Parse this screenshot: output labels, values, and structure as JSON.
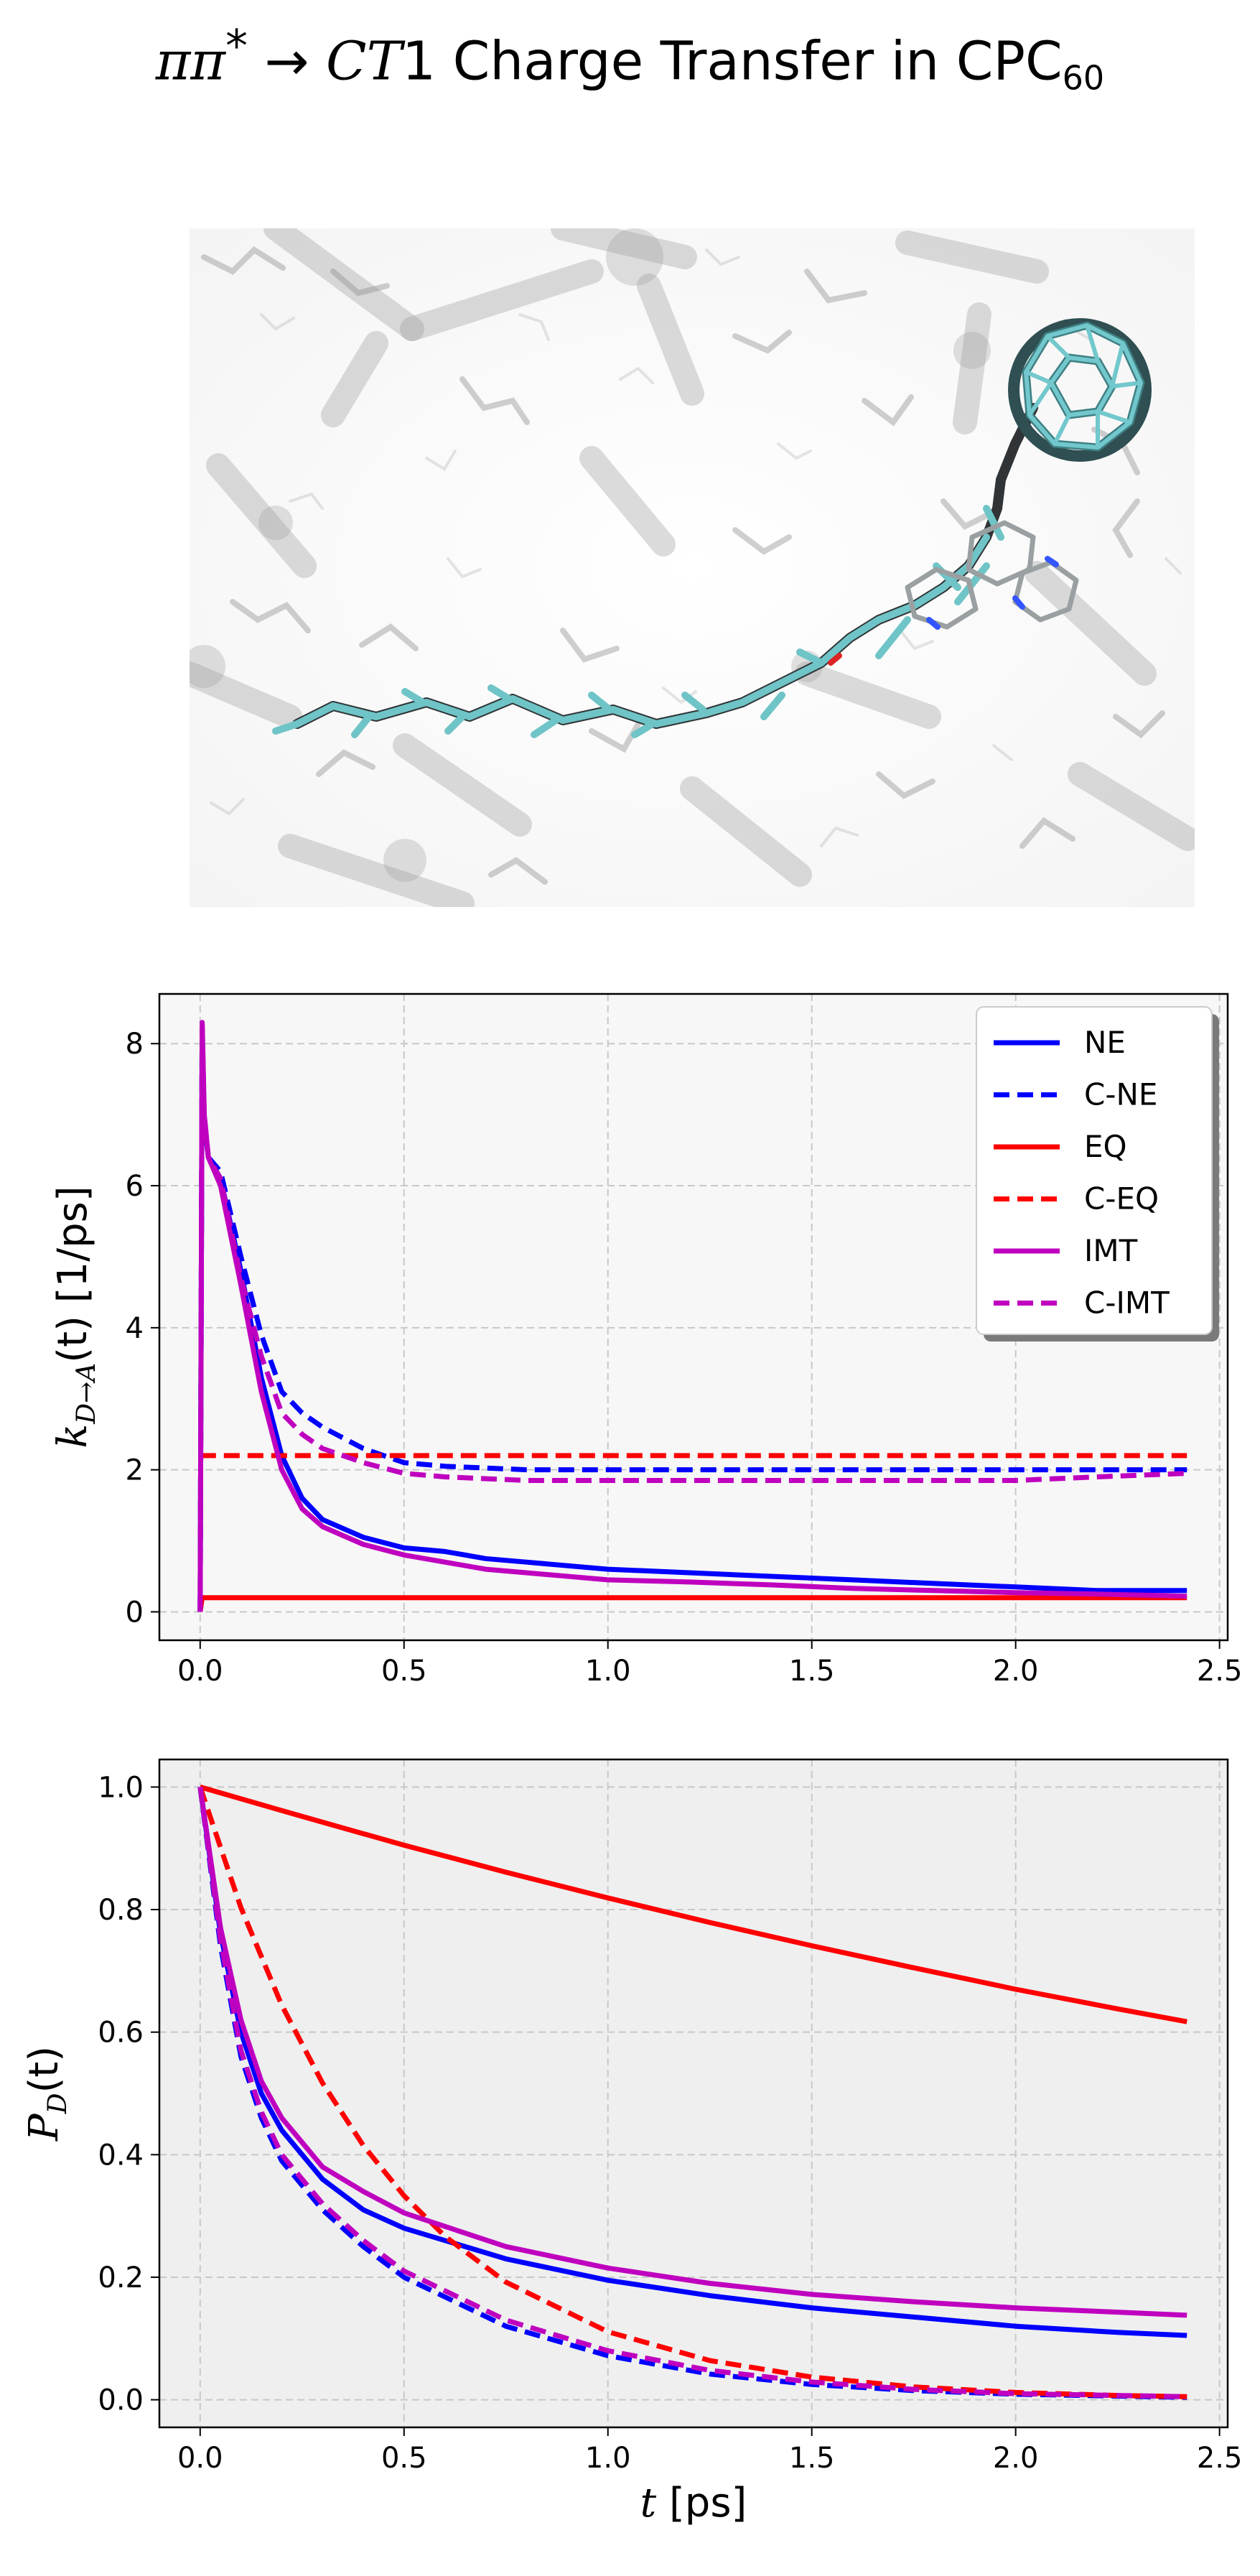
{
  "figure": {
    "title_pre": "ππ",
    "title_star": "*",
    "title_arrow": " → ",
    "title_ct": "CT",
    "title_one": "1",
    "title_rest": " Charge Transfer in CPC",
    "title_sub": "60"
  },
  "colors": {
    "blue": "#0000ff",
    "red": "#ff0000",
    "magenta": "#bf00bf",
    "panel1_bg": "#f7f7f7",
    "panel2_bg": "#efefef",
    "grid": "#c8c8c8"
  },
  "chart_data": [
    {
      "type": "line",
      "panel": "rate",
      "ylabel_prefix": "k",
      "ylabel_sub": "D→A",
      "ylabel_suffix": "(t) [1/ps]",
      "xlim": [
        -0.1,
        2.52
      ],
      "ylim": [
        -0.4,
        8.7
      ],
      "xticks": [
        0.0,
        0.5,
        1.0,
        1.5,
        2.0,
        2.5
      ],
      "xtick_labels": [
        "0.0",
        "0.5",
        "1.0",
        "1.5",
        "2.0",
        "2.5"
      ],
      "yticks": [
        0,
        2,
        4,
        6,
        8
      ],
      "ytick_labels": [
        "0",
        "2",
        "4",
        "6",
        "8"
      ],
      "grid": true,
      "legend_position": "top-right",
      "series": [
        {
          "name": "NE",
          "color": "blue",
          "dash": "solid",
          "x": [
            0,
            0.005,
            0.01,
            0.02,
            0.05,
            0.1,
            0.15,
            0.2,
            0.25,
            0.3,
            0.4,
            0.5,
            0.6,
            0.7,
            0.8,
            1.0,
            1.2,
            1.4,
            1.6,
            1.8,
            2.0,
            2.2,
            2.42
          ],
          "y": [
            0,
            8.2,
            6.9,
            6.4,
            6.1,
            4.8,
            3.3,
            2.2,
            1.6,
            1.3,
            1.05,
            0.9,
            0.85,
            0.75,
            0.7,
            0.6,
            0.55,
            0.5,
            0.45,
            0.4,
            0.35,
            0.3,
            0.3
          ]
        },
        {
          "name": "C-NE",
          "color": "blue",
          "dash": "dashed",
          "x": [
            0,
            0.005,
            0.01,
            0.02,
            0.05,
            0.1,
            0.15,
            0.2,
            0.25,
            0.3,
            0.4,
            0.5,
            0.6,
            0.8,
            1.0,
            1.2,
            1.4,
            1.6,
            1.8,
            2.0,
            2.2,
            2.42
          ],
          "y": [
            0,
            8.2,
            6.9,
            6.4,
            6.2,
            5.0,
            3.9,
            3.1,
            2.8,
            2.6,
            2.3,
            2.1,
            2.05,
            2.0,
            2.0,
            2.0,
            2.0,
            2.0,
            2.0,
            2.0,
            2.0,
            2.0
          ]
        },
        {
          "name": "EQ",
          "color": "red",
          "dash": "solid",
          "x": [
            0,
            0.005,
            2.42
          ],
          "y": [
            0,
            0.2,
            0.2
          ]
        },
        {
          "name": "C-EQ",
          "color": "red",
          "dash": "dashed",
          "x": [
            0,
            2.42
          ],
          "y": [
            2.2,
            2.2
          ]
        },
        {
          "name": "IMT",
          "color": "magenta",
          "dash": "solid",
          "x": [
            0,
            0.005,
            0.01,
            0.02,
            0.05,
            0.1,
            0.15,
            0.2,
            0.25,
            0.3,
            0.4,
            0.5,
            0.6,
            0.7,
            0.8,
            1.0,
            1.2,
            1.4,
            1.6,
            1.8,
            2.0,
            2.2,
            2.42
          ],
          "y": [
            0,
            8.3,
            7.0,
            6.4,
            6.0,
            4.6,
            3.1,
            2.0,
            1.45,
            1.2,
            0.95,
            0.8,
            0.7,
            0.6,
            0.55,
            0.45,
            0.42,
            0.38,
            0.33,
            0.3,
            0.27,
            0.25,
            0.22
          ]
        },
        {
          "name": "C-IMT",
          "color": "magenta",
          "dash": "dashed",
          "x": [
            0,
            0.005,
            0.01,
            0.02,
            0.05,
            0.1,
            0.15,
            0.2,
            0.25,
            0.3,
            0.4,
            0.5,
            0.6,
            0.8,
            1.0,
            1.2,
            1.4,
            1.6,
            1.8,
            2.0,
            2.2,
            2.42
          ],
          "y": [
            0,
            8.3,
            7.0,
            6.4,
            6.1,
            4.7,
            3.6,
            2.8,
            2.5,
            2.3,
            2.1,
            1.95,
            1.9,
            1.85,
            1.85,
            1.85,
            1.85,
            1.85,
            1.85,
            1.85,
            1.9,
            1.95
          ]
        }
      ]
    },
    {
      "type": "line",
      "panel": "population",
      "xlabel_var": "t",
      "xlabel_unit": " [ps]",
      "ylabel_prefix": "P",
      "ylabel_sub": "D",
      "ylabel_suffix": "(t)",
      "xlim": [
        -0.1,
        2.52
      ],
      "ylim": [
        -0.045,
        1.045
      ],
      "xticks": [
        0.0,
        0.5,
        1.0,
        1.5,
        2.0,
        2.5
      ],
      "xtick_labels": [
        "0.0",
        "0.5",
        "1.0",
        "1.5",
        "2.0",
        "2.5"
      ],
      "yticks": [
        0.0,
        0.2,
        0.4,
        0.6,
        0.8,
        1.0
      ],
      "ytick_labels": [
        "0.0",
        "0.2",
        "0.4",
        "0.6",
        "0.8",
        "1.0"
      ],
      "grid": true,
      "series": [
        {
          "name": "NE",
          "color": "blue",
          "dash": "solid",
          "x": [
            0,
            0.05,
            0.1,
            0.15,
            0.2,
            0.3,
            0.4,
            0.5,
            0.75,
            1.0,
            1.25,
            1.5,
            1.75,
            2.0,
            2.25,
            2.42
          ],
          "y": [
            1.0,
            0.76,
            0.6,
            0.5,
            0.44,
            0.36,
            0.31,
            0.28,
            0.23,
            0.195,
            0.17,
            0.15,
            0.135,
            0.12,
            0.11,
            0.105
          ]
        },
        {
          "name": "C-NE",
          "color": "blue",
          "dash": "dashed",
          "x": [
            0,
            0.05,
            0.1,
            0.15,
            0.2,
            0.3,
            0.4,
            0.5,
            0.75,
            1.0,
            1.25,
            1.5,
            1.75,
            2.0,
            2.25,
            2.42
          ],
          "y": [
            1.0,
            0.74,
            0.56,
            0.46,
            0.39,
            0.31,
            0.25,
            0.2,
            0.12,
            0.072,
            0.042,
            0.025,
            0.015,
            0.009,
            0.006,
            0.004
          ]
        },
        {
          "name": "EQ",
          "color": "red",
          "dash": "solid",
          "x": [
            0,
            0.25,
            0.5,
            0.75,
            1.0,
            1.25,
            1.5,
            1.75,
            2.0,
            2.25,
            2.42
          ],
          "y": [
            1.0,
            0.952,
            0.905,
            0.861,
            0.819,
            0.779,
            0.741,
            0.705,
            0.67,
            0.638,
            0.617
          ]
        },
        {
          "name": "C-EQ",
          "color": "red",
          "dash": "dashed",
          "x": [
            0,
            0.1,
            0.2,
            0.3,
            0.4,
            0.5,
            0.6,
            0.75,
            1.0,
            1.25,
            1.5,
            1.75,
            2.0,
            2.25,
            2.42
          ],
          "y": [
            1.0,
            0.803,
            0.644,
            0.517,
            0.415,
            0.333,
            0.267,
            0.192,
            0.111,
            0.064,
            0.037,
            0.021,
            0.012,
            0.007,
            0.005
          ]
        },
        {
          "name": "IMT",
          "color": "magenta",
          "dash": "solid",
          "x": [
            0,
            0.05,
            0.1,
            0.15,
            0.2,
            0.3,
            0.4,
            0.5,
            0.75,
            1.0,
            1.25,
            1.5,
            1.75,
            2.0,
            2.25,
            2.42
          ],
          "y": [
            1.0,
            0.77,
            0.62,
            0.52,
            0.46,
            0.38,
            0.34,
            0.305,
            0.25,
            0.215,
            0.19,
            0.172,
            0.16,
            0.15,
            0.143,
            0.138
          ]
        },
        {
          "name": "C-IMT",
          "color": "magenta",
          "dash": "dashed",
          "x": [
            0,
            0.05,
            0.1,
            0.15,
            0.2,
            0.3,
            0.4,
            0.5,
            0.75,
            1.0,
            1.25,
            1.5,
            1.75,
            2.0,
            2.25,
            2.42
          ],
          "y": [
            1.0,
            0.75,
            0.57,
            0.47,
            0.4,
            0.32,
            0.26,
            0.21,
            0.13,
            0.08,
            0.048,
            0.029,
            0.017,
            0.01,
            0.007,
            0.005
          ]
        }
      ]
    }
  ]
}
